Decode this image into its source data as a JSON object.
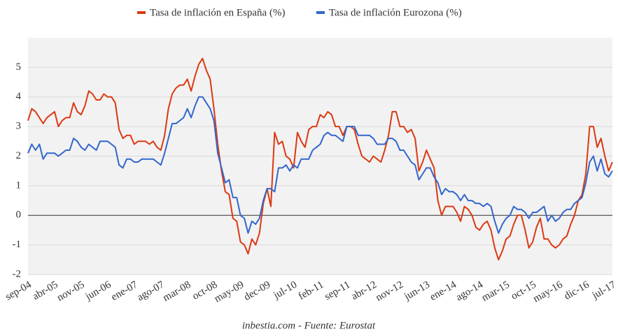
{
  "chart_data": {
    "type": "line",
    "source": "inbestia.com - Fuente: Eurostat",
    "categories": [
      "sep-04",
      null,
      null,
      null,
      null,
      null,
      null,
      "abr-05",
      null,
      null,
      null,
      null,
      null,
      null,
      "nov-05",
      null,
      null,
      null,
      null,
      null,
      null,
      "jun-06",
      null,
      null,
      null,
      null,
      null,
      null,
      "ene-07",
      null,
      null,
      null,
      null,
      null,
      null,
      "ago-07",
      null,
      null,
      null,
      null,
      null,
      null,
      "mar-08",
      null,
      null,
      null,
      null,
      null,
      null,
      "oct-08",
      null,
      null,
      null,
      null,
      null,
      null,
      "may-09",
      null,
      null,
      null,
      null,
      null,
      null,
      "dec-09",
      null,
      null,
      null,
      null,
      null,
      null,
      "jul-10",
      null,
      null,
      null,
      null,
      null,
      null,
      "feb-11",
      null,
      null,
      null,
      null,
      null,
      null,
      "sep-11",
      null,
      null,
      null,
      null,
      null,
      null,
      "abr-12",
      null,
      null,
      null,
      null,
      null,
      null,
      "nov-12",
      null,
      null,
      null,
      null,
      null,
      null,
      "jun-13",
      null,
      null,
      null,
      null,
      null,
      null,
      "ene-14",
      null,
      null,
      null,
      null,
      null,
      null,
      "ago-14",
      null,
      null,
      null,
      null,
      null,
      null,
      "mar-15",
      null,
      null,
      null,
      null,
      null,
      null,
      "oct-15",
      null,
      null,
      null,
      null,
      null,
      null,
      "may-16",
      null,
      null,
      null,
      null,
      null,
      null,
      "dic-16",
      null,
      null,
      null,
      null,
      null,
      null,
      "jul-17"
    ],
    "series": [
      {
        "name": "Tasa de inflación en España (%)",
        "color": "#dc3912",
        "values": [
          3.2,
          3.6,
          3.5,
          3.3,
          3.1,
          3.3,
          3.4,
          3.5,
          3.0,
          3.2,
          3.3,
          3.3,
          3.8,
          3.5,
          3.4,
          3.7,
          4.2,
          4.1,
          3.9,
          3.9,
          4.1,
          4.0,
          4.0,
          3.8,
          2.9,
          2.6,
          2.7,
          2.7,
          2.4,
          2.5,
          2.5,
          2.5,
          2.4,
          2.5,
          2.3,
          2.2,
          2.7,
          3.6,
          4.1,
          4.3,
          4.4,
          4.4,
          4.6,
          4.2,
          4.7,
          5.1,
          5.3,
          4.9,
          4.6,
          3.6,
          2.4,
          1.5,
          0.8,
          0.7,
          -0.1,
          -0.2,
          -0.9,
          -1.0,
          -1.3,
          -0.8,
          -1.0,
          -0.6,
          0.4,
          0.9,
          0.3,
          2.8,
          2.4,
          2.5,
          2.0,
          1.9,
          1.6,
          2.8,
          2.5,
          2.3,
          2.9,
          3.0,
          3.0,
          3.4,
          3.3,
          3.5,
          3.4,
          3.0,
          3.0,
          2.7,
          3.0,
          3.0,
          2.9,
          2.4,
          2.0,
          1.9,
          1.8,
          2.0,
          1.9,
          1.8,
          2.2,
          2.7,
          3.5,
          3.5,
          3.0,
          3.0,
          2.8,
          2.9,
          2.6,
          1.5,
          1.8,
          2.2,
          1.9,
          1.6,
          0.5,
          0.0,
          0.3,
          0.3,
          0.3,
          0.1,
          -0.2,
          0.3,
          0.2,
          0.0,
          -0.4,
          -0.5,
          -0.3,
          -0.2,
          -0.5,
          -1.1,
          -1.5,
          -1.2,
          -0.8,
          -0.7,
          -0.3,
          0.0,
          0.0,
          -0.5,
          -1.1,
          -0.9,
          -0.4,
          -0.1,
          -0.8,
          -0.8,
          -1.0,
          -1.1,
          -1.0,
          -0.8,
          -0.7,
          -0.3,
          0.0,
          0.5,
          0.7,
          1.4,
          3.0,
          3.0,
          2.3,
          2.6,
          2.0,
          1.5,
          1.8
        ]
      },
      {
        "name": "Tasa de inflación Eurozona (%)",
        "color": "#3366cc",
        "values": [
          2.1,
          2.4,
          2.2,
          2.4,
          1.9,
          2.1,
          2.1,
          2.1,
          2.0,
          2.1,
          2.2,
          2.2,
          2.6,
          2.5,
          2.3,
          2.2,
          2.4,
          2.3,
          2.2,
          2.5,
          2.5,
          2.5,
          2.4,
          2.3,
          1.7,
          1.6,
          1.9,
          1.9,
          1.8,
          1.8,
          1.9,
          1.9,
          1.9,
          1.9,
          1.8,
          1.7,
          2.1,
          2.6,
          3.1,
          3.1,
          3.2,
          3.3,
          3.6,
          3.3,
          3.7,
          4.0,
          4.0,
          3.8,
          3.6,
          3.2,
          2.1,
          1.6,
          1.1,
          1.2,
          0.6,
          0.6,
          0.0,
          -0.1,
          -0.6,
          -0.2,
          -0.3,
          -0.1,
          0.5,
          0.9,
          0.9,
          0.8,
          1.6,
          1.6,
          1.7,
          1.5,
          1.7,
          1.6,
          1.9,
          1.9,
          1.9,
          2.2,
          2.3,
          2.4,
          2.7,
          2.8,
          2.7,
          2.7,
          2.6,
          2.5,
          3.0,
          3.0,
          3.0,
          2.7,
          2.7,
          2.7,
          2.7,
          2.6,
          2.4,
          2.4,
          2.4,
          2.6,
          2.6,
          2.5,
          2.2,
          2.2,
          2.0,
          1.8,
          1.7,
          1.2,
          1.4,
          1.6,
          1.6,
          1.3,
          1.1,
          0.7,
          0.9,
          0.8,
          0.8,
          0.7,
          0.5,
          0.7,
          0.5,
          0.5,
          0.4,
          0.4,
          0.3,
          0.4,
          0.3,
          -0.2,
          -0.6,
          -0.3,
          -0.1,
          0.0,
          0.3,
          0.2,
          0.2,
          0.1,
          -0.1,
          0.1,
          0.1,
          0.2,
          0.3,
          -0.2,
          0.0,
          -0.2,
          -0.1,
          0.1,
          0.2,
          0.2,
          0.4,
          0.5,
          0.6,
          1.1,
          1.8,
          2.0,
          1.5,
          1.9,
          1.4,
          1.3,
          1.5
        ]
      }
    ],
    "ylim": [
      -2,
      6
    ],
    "yticks": [
      -2,
      -1,
      0,
      1,
      2,
      3,
      4,
      5
    ],
    "grid": true,
    "legend": "top"
  }
}
